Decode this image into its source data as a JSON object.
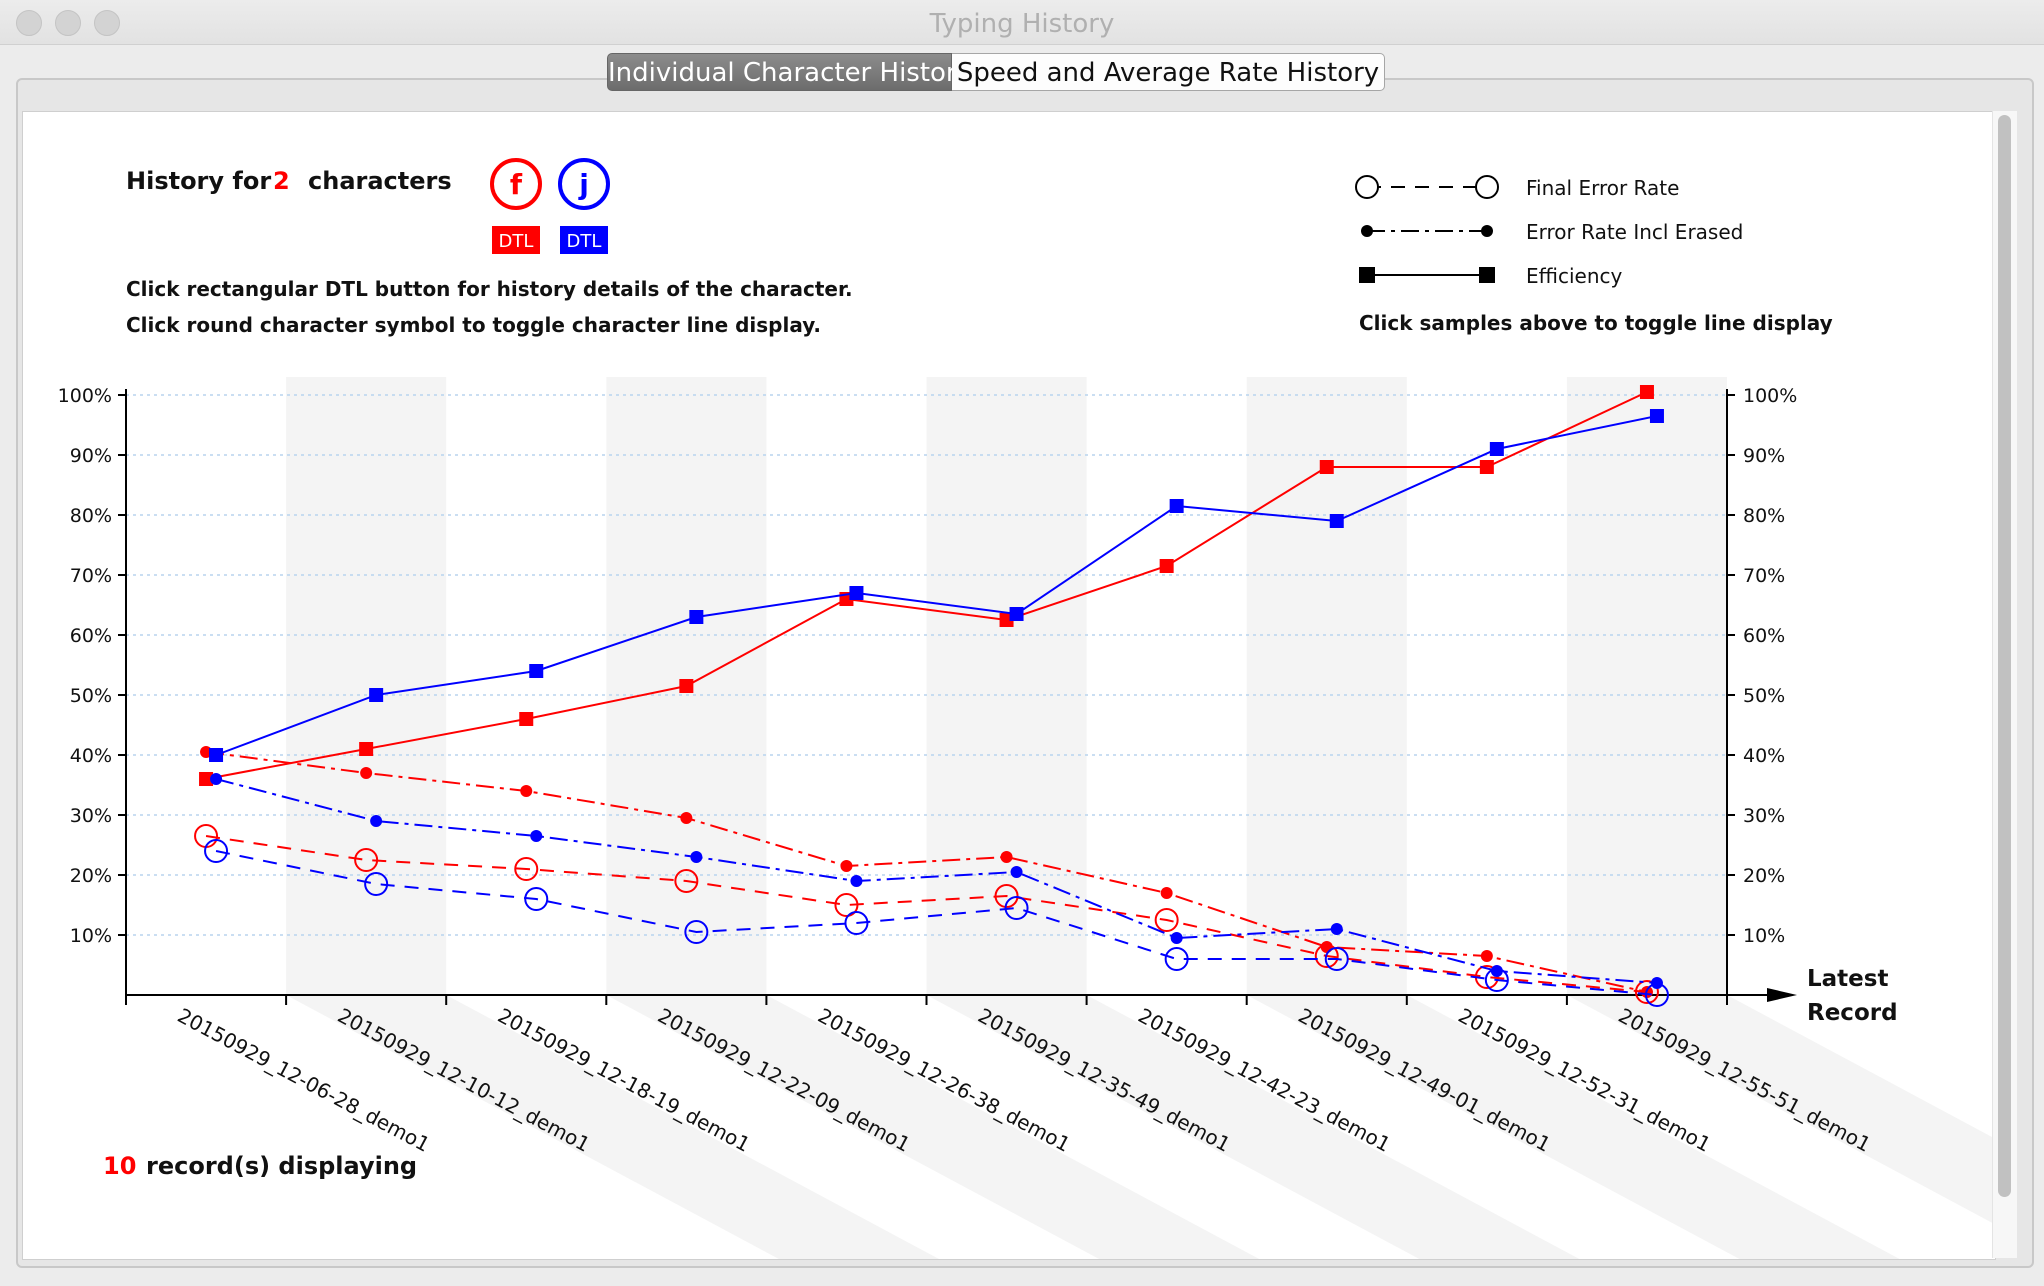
{
  "window": {
    "title": "Typing History"
  },
  "tabs": [
    {
      "label": "Individual Character History",
      "active": true
    },
    {
      "label": "Speed and Average Rate History",
      "active": false
    }
  ],
  "header": {
    "history_prefix": "History for",
    "char_count": "2",
    "history_suffix": "characters",
    "instructions": [
      "Click rectangular DTL button for history details of the character.",
      "Click round character symbol to toggle character line display."
    ],
    "characters": [
      {
        "symbol": "f",
        "button": "DTL",
        "color": "#ff0000"
      },
      {
        "symbol": "j",
        "button": "DTL",
        "color": "#0000ff"
      }
    ]
  },
  "legend": {
    "entries": [
      "Final Error Rate",
      "Error Rate Incl Erased",
      "Efficiency"
    ],
    "hint": "Click samples above to toggle line display"
  },
  "footer": {
    "count": "10",
    "label": "record(s) displaying"
  },
  "chart_data": {
    "type": "line",
    "categories": [
      "20150929_12-06-28_demo1",
      "20150929_12-10-12_demo1",
      "20150929_12-18-19_demo1",
      "20150929_12-22-09_demo1",
      "20150929_12-26-38_demo1",
      "20150929_12-35-49_demo1",
      "20150929_12-42-23_demo1",
      "20150929_12-49-01_demo1",
      "20150929_12-52-31_demo1",
      "20150929_12-55-51_demo1"
    ],
    "x_axis_end_label": [
      "Latest",
      "Record"
    ],
    "y_ticks": [
      "10%",
      "20%",
      "30%",
      "40%",
      "50%",
      "60%",
      "70%",
      "80%",
      "90%",
      "100%"
    ],
    "ylim": [
      0,
      100
    ],
    "grid": true,
    "legend_position": "top-right",
    "series": [
      {
        "character": "f",
        "metric": "Efficiency",
        "color": "#ff0000",
        "values": [
          36,
          41,
          46,
          51.5,
          66,
          62.5,
          71.5,
          88,
          88,
          100.5
        ]
      },
      {
        "character": "f",
        "metric": "Error Rate Incl Erased",
        "color": "#ff0000",
        "values": [
          40.5,
          37,
          34,
          29.5,
          21.5,
          23,
          17,
          8,
          6.5,
          0.5
        ]
      },
      {
        "character": "f",
        "metric": "Final Error Rate",
        "color": "#ff0000",
        "values": [
          26.5,
          22.5,
          21,
          19,
          15,
          16.5,
          12.5,
          6.5,
          3,
          0.5
        ]
      },
      {
        "character": "j",
        "metric": "Efficiency",
        "color": "#0000ff",
        "values": [
          40,
          50,
          54,
          63,
          67,
          63.5,
          81.5,
          79,
          91,
          96.5
        ]
      },
      {
        "character": "j",
        "metric": "Error Rate Incl Erased",
        "color": "#0000ff",
        "values": [
          36,
          29,
          26.5,
          23,
          19,
          20.5,
          9.5,
          11,
          4,
          2
        ]
      },
      {
        "character": "j",
        "metric": "Final Error Rate",
        "color": "#0000ff",
        "values": [
          24,
          18.5,
          16,
          10.5,
          12,
          14.5,
          6,
          6,
          2.5,
          0
        ]
      }
    ]
  }
}
